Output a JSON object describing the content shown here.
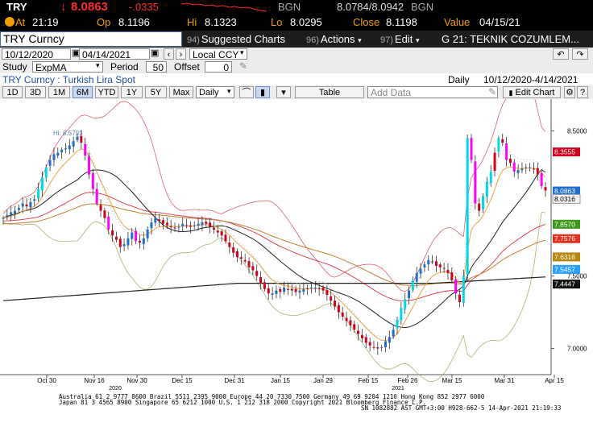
{
  "quote": {
    "ticker": "TRY",
    "price": "8.0863",
    "change": "-.0335",
    "bid_label": "BGN",
    "bid_ask": "8.0784/8.0942",
    "bgn2": "BGN",
    "at_label": "At",
    "time": "21:19",
    "op_label": "Op",
    "open": "8.1196",
    "hi_label": "Hi",
    "high": "8.1323",
    "lo_label": "Lo",
    "low": "8.0295",
    "close_label": "Close",
    "close": "8.1198",
    "value_label": "Value",
    "value_date": "04/15/21"
  },
  "titlebar": {
    "security": "TRY Curncy",
    "menu1_num": "94)",
    "menu1": "Suggested Charts",
    "menu2_num": "96)",
    "menu2": "Actions",
    "menu3_num": "97)",
    "menu3": "Edit",
    "menu4": "G 21: TEKNIK COZUMLEM..."
  },
  "controls": {
    "start_date": "10/12/2020",
    "end_date": "04/14/2021",
    "currency": "Local CCY",
    "study_label": "Study",
    "study": "ExpMA",
    "period_label": "Period",
    "period": "50",
    "offset_label": "Offset",
    "offset": "0",
    "desc": "TRY Curncy : Turkish Lira Spot",
    "freq": "Daily",
    "range": "10/12/2020-4/14/2021"
  },
  "toolbar": {
    "periods": [
      "1D",
      "3D",
      "1M",
      "6M",
      "YTD",
      "1Y",
      "5Y",
      "Max"
    ],
    "selected": "6M",
    "freq": "Daily",
    "table": "Table",
    "add_data": "Add Data",
    "edit_chart": "Edit Chart"
  },
  "chart_data": {
    "type": "candlestick",
    "hi_annotation": "Hi: 8.5793",
    "y_ticks": [
      "8.5000",
      "7.5000",
      "7.0000"
    ],
    "x_ticks": [
      "Oct 30",
      "Nov 16",
      "Nov 30",
      "Dec 15",
      "Dec 31",
      "Jan 15",
      "Jan 29",
      "Feb 15",
      "Feb 26",
      "Mar 15",
      "Mar 31",
      "Apr 15"
    ],
    "x_years": [
      "2020",
      "2021"
    ],
    "right_labels": [
      {
        "text": "8.3555",
        "color": "#d0001e"
      },
      {
        "text": "8.0863",
        "color": "#1f6fd0"
      },
      {
        "text": "8.0316",
        "color": "#ffffff"
      },
      {
        "text": "7.8570",
        "color": "#3a9a1a"
      },
      {
        "text": "7.7576",
        "color": "#e0301e"
      },
      {
        "text": "7.6316",
        "color": "#b8860b"
      },
      {
        "text": "7.5457",
        "color": "#2aa0ff"
      },
      {
        "text": "7.4447",
        "color": "#111111"
      }
    ],
    "ylim": [
      6.82,
      8.72
    ]
  },
  "footer": {
    "line1": "Australia 61 2 9777 8600  Brazil 5511 2395 9000  Europe 44 20 7330 7500  Germany 49 69 9204 1210  Hong Kong 852 2977 6000",
    "line2": "Japan 81 3 4565 8900        Singapore 65 6212 1000        U.S. 1 212 318 2000          Copyright 2021 Bloomberg Finance L.P.",
    "line3": "SN 1082882 AST  GMT+3:00 H928-662-5 14-Apr-2021 21:19:33"
  },
  "colors": {
    "down": "#d0001e",
    "up": "#1f6fd0",
    "bear_strong": "#ff00ff",
    "bull_strong": "#00d8e8"
  }
}
